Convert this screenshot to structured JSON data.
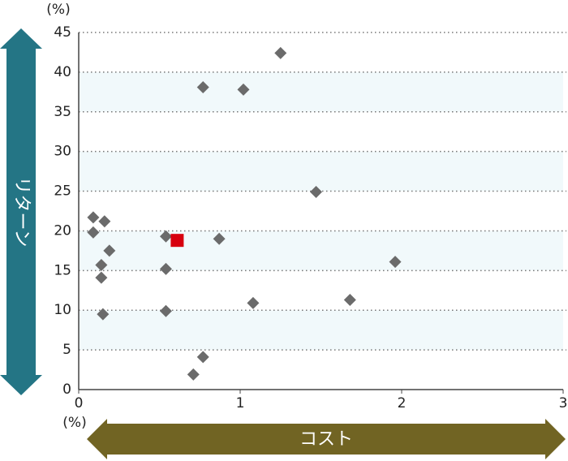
{
  "chart_data": {
    "type": "scatter",
    "y_label": "リターン",
    "x_label": "コスト",
    "y_unit": "(%)",
    "x_unit": "(%)",
    "xlim": [
      0,
      3
    ],
    "xticks": [
      0,
      1,
      2,
      3
    ],
    "ylim": [
      0,
      45
    ],
    "yticks": [
      0,
      5,
      10,
      15,
      20,
      25,
      30,
      35,
      40,
      45
    ],
    "grid": true,
    "band_color": "#f1f9fb",
    "series": [
      {
        "color": "#6b6b6b",
        "marker": "diamond",
        "x": [
          0.09,
          0.16,
          0.09,
          0.19,
          0.14,
          0.14,
          0.15,
          0.54,
          0.54,
          0.54,
          0.77,
          0.77,
          0.71,
          0.87,
          1.02,
          1.08,
          1.25,
          1.47,
          1.68,
          1.96
        ],
        "values": [
          21.7,
          21.2,
          19.8,
          17.5,
          15.7,
          14.1,
          9.5,
          19.3,
          15.2,
          9.9,
          38.1,
          4.1,
          1.9,
          19.0,
          37.8,
          10.9,
          42.4,
          24.9,
          11.3,
          16.1
        ]
      },
      {
        "color": "#d7000f",
        "marker": "square",
        "x": [
          0.61
        ],
        "values": [
          18.8
        ]
      }
    ]
  }
}
